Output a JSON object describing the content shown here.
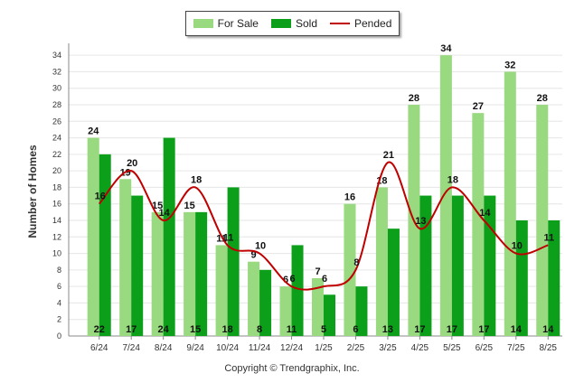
{
  "chart_data": {
    "type": "bar",
    "categories": [
      "6/24",
      "7/24",
      "8/24",
      "9/24",
      "10/24",
      "11/24",
      "12/24",
      "1/25",
      "2/25",
      "3/25",
      "4/25",
      "5/25",
      "6/25",
      "7/25",
      "8/25"
    ],
    "series": [
      {
        "name": "For Sale",
        "type": "bar",
        "color": "#99d97f",
        "values": [
          24,
          19,
          15,
          15,
          11,
          9,
          6,
          7,
          16,
          18,
          28,
          34,
          27,
          32,
          28
        ]
      },
      {
        "name": "Sold",
        "type": "bar",
        "color": "#0ca01a",
        "values": [
          22,
          17,
          24,
          15,
          18,
          8,
          11,
          5,
          6,
          13,
          17,
          17,
          17,
          14,
          14
        ]
      },
      {
        "name": "Pended",
        "type": "line",
        "color": "#c00000",
        "values": [
          16,
          20,
          14,
          18,
          11,
          10,
          6,
          6,
          8,
          21,
          13,
          18,
          14,
          10,
          11
        ]
      }
    ],
    "ylabel": "Number of Homes",
    "xlabel": "",
    "ylim": [
      0,
      35
    ],
    "yticks": [
      0,
      2,
      4,
      6,
      8,
      10,
      12,
      14,
      16,
      18,
      20,
      22,
      24,
      26,
      28,
      30,
      32,
      34
    ],
    "grid": true,
    "legend": "top-center"
  },
  "legend": {
    "for_sale": "For Sale",
    "sold": "Sold",
    "pended": "Pended"
  },
  "footer": "Copyright © Trendgraphix, Inc."
}
